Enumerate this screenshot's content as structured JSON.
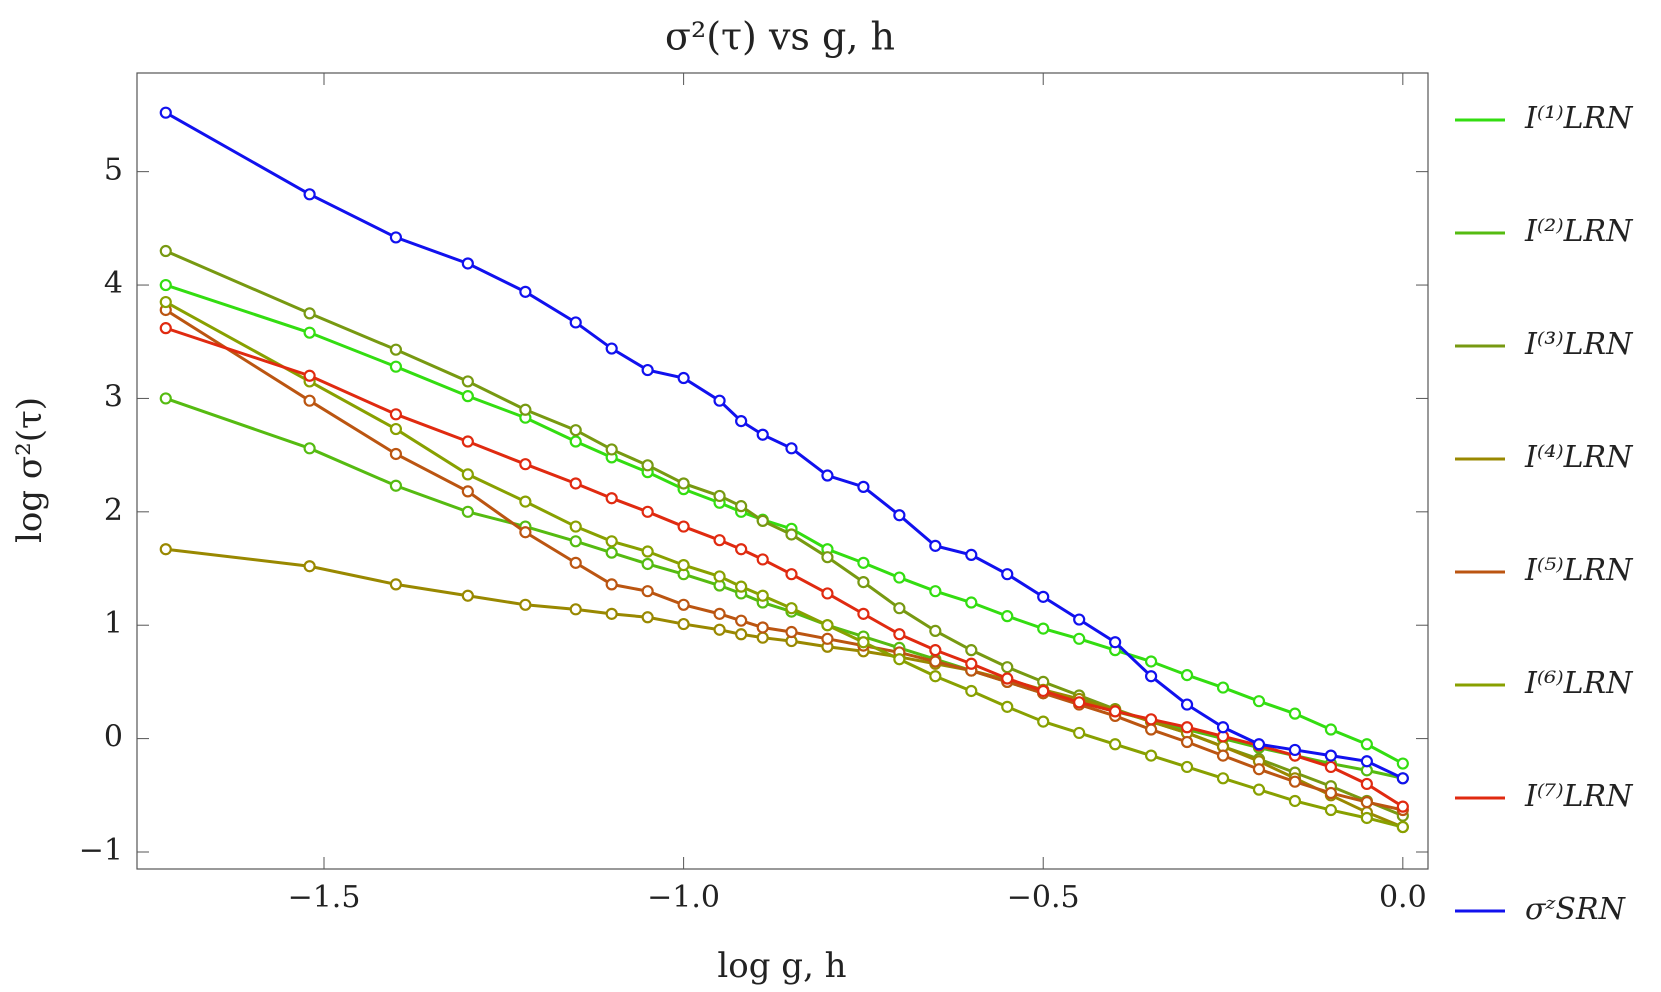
{
  "chart_data": {
    "type": "line",
    "title": "σ²(τ) vs g, h",
    "x_label": "log g, h",
    "y_label": "log σ²(τ)",
    "x": [
      -1.72,
      -1.52,
      -1.4,
      -1.3,
      -1.22,
      -1.15,
      -1.1,
      -1.05,
      -1.0,
      -0.95,
      -0.92,
      -0.89,
      -0.85,
      -0.8,
      -0.75,
      -0.7,
      -0.65,
      -0.6,
      -0.55,
      -0.5,
      -0.45,
      -0.4,
      -0.35,
      -0.3,
      -0.25,
      -0.2,
      -0.15,
      -0.1,
      -0.05,
      0.0
    ],
    "series": [
      {
        "name": "I⁽¹⁾LRN",
        "color": "#33dd11",
        "values": [
          4.0,
          3.58,
          3.28,
          3.02,
          2.83,
          2.62,
          2.48,
          2.35,
          2.2,
          2.08,
          2.0,
          1.93,
          1.85,
          1.67,
          1.55,
          1.42,
          1.3,
          1.2,
          1.08,
          0.97,
          0.88,
          0.78,
          0.68,
          0.56,
          0.45,
          0.33,
          0.22,
          0.08,
          -0.05,
          -0.22
        ]
      },
      {
        "name": "I⁽²⁾LRN",
        "color": "#55bb11",
        "values": [
          3.0,
          2.56,
          2.23,
          2.0,
          1.87,
          1.74,
          1.64,
          1.54,
          1.45,
          1.35,
          1.28,
          1.2,
          1.12,
          1.0,
          0.9,
          0.8,
          0.7,
          0.6,
          0.5,
          0.4,
          0.32,
          0.24,
          0.16,
          0.08,
          0.0,
          -0.08,
          -0.15,
          -0.22,
          -0.28,
          -0.35
        ]
      },
      {
        "name": "I⁽³⁾LRN",
        "color": "#779911",
        "values": [
          4.3,
          3.75,
          3.43,
          3.15,
          2.9,
          2.72,
          2.55,
          2.41,
          2.25,
          2.14,
          2.05,
          1.92,
          1.8,
          1.6,
          1.38,
          1.15,
          0.95,
          0.78,
          0.63,
          0.5,
          0.38,
          0.26,
          0.15,
          0.05,
          -0.07,
          -0.18,
          -0.3,
          -0.42,
          -0.55,
          -0.68
        ]
      },
      {
        "name": "I⁽⁴⁾LRN",
        "color": "#998800",
        "values": [
          1.67,
          1.52,
          1.36,
          1.26,
          1.18,
          1.14,
          1.1,
          1.07,
          1.01,
          0.96,
          0.92,
          0.89,
          0.86,
          0.81,
          0.77,
          0.72,
          0.66,
          0.6,
          0.52,
          0.43,
          0.35,
          0.25,
          0.15,
          0.05,
          -0.07,
          -0.2,
          -0.35,
          -0.5,
          -0.65,
          -0.78
        ]
      },
      {
        "name": "I⁽⁵⁾LRN",
        "color": "#bb5511",
        "values": [
          3.78,
          2.98,
          2.51,
          2.18,
          1.82,
          1.55,
          1.36,
          1.3,
          1.18,
          1.1,
          1.04,
          0.98,
          0.94,
          0.88,
          0.82,
          0.76,
          0.68,
          0.6,
          0.5,
          0.4,
          0.3,
          0.2,
          0.08,
          -0.03,
          -0.15,
          -0.27,
          -0.38,
          -0.48,
          -0.56,
          -0.63
        ]
      },
      {
        "name": "I⁽⁶⁾LRN",
        "color": "#88a000",
        "values": [
          3.85,
          3.15,
          2.73,
          2.33,
          2.09,
          1.87,
          1.74,
          1.65,
          1.53,
          1.43,
          1.34,
          1.26,
          1.15,
          1.0,
          0.85,
          0.7,
          0.55,
          0.42,
          0.28,
          0.15,
          0.05,
          -0.05,
          -0.15,
          -0.25,
          -0.35,
          -0.45,
          -0.55,
          -0.63,
          -0.7,
          -0.78
        ]
      },
      {
        "name": "I⁽⁷⁾LRN",
        "color": "#e02a10",
        "values": [
          3.62,
          3.2,
          2.86,
          2.62,
          2.42,
          2.25,
          2.12,
          2.0,
          1.87,
          1.75,
          1.67,
          1.58,
          1.45,
          1.28,
          1.1,
          0.92,
          0.78,
          0.66,
          0.53,
          0.42,
          0.32,
          0.24,
          0.17,
          0.1,
          0.02,
          -0.06,
          -0.15,
          -0.25,
          -0.4,
          -0.6
        ]
      },
      {
        "name": "σᶻSRN",
        "color": "#1111ee",
        "values": [
          5.52,
          4.8,
          4.42,
          4.19,
          3.94,
          3.67,
          3.44,
          3.25,
          3.18,
          2.98,
          2.8,
          2.68,
          2.56,
          2.32,
          2.22,
          1.97,
          1.7,
          1.62,
          1.45,
          1.25,
          1.05,
          0.85,
          0.55,
          0.3,
          0.1,
          -0.05,
          -0.1,
          -0.15,
          -0.2,
          -0.35
        ]
      }
    ],
    "xlim": [
      -1.76,
      0.035
    ],
    "ylim": [
      -1.15,
      5.87
    ],
    "xticks": [
      {
        "value": -1.5,
        "label": "−1.5"
      },
      {
        "value": -1.0,
        "label": "−1.0"
      },
      {
        "value": -0.5,
        "label": "−0.5"
      },
      {
        "value": 0.0,
        "label": "0.0"
      }
    ],
    "yticks": [
      {
        "value": -1,
        "label": "−1"
      },
      0,
      1,
      2,
      3,
      4,
      5
    ],
    "legend": "right"
  }
}
